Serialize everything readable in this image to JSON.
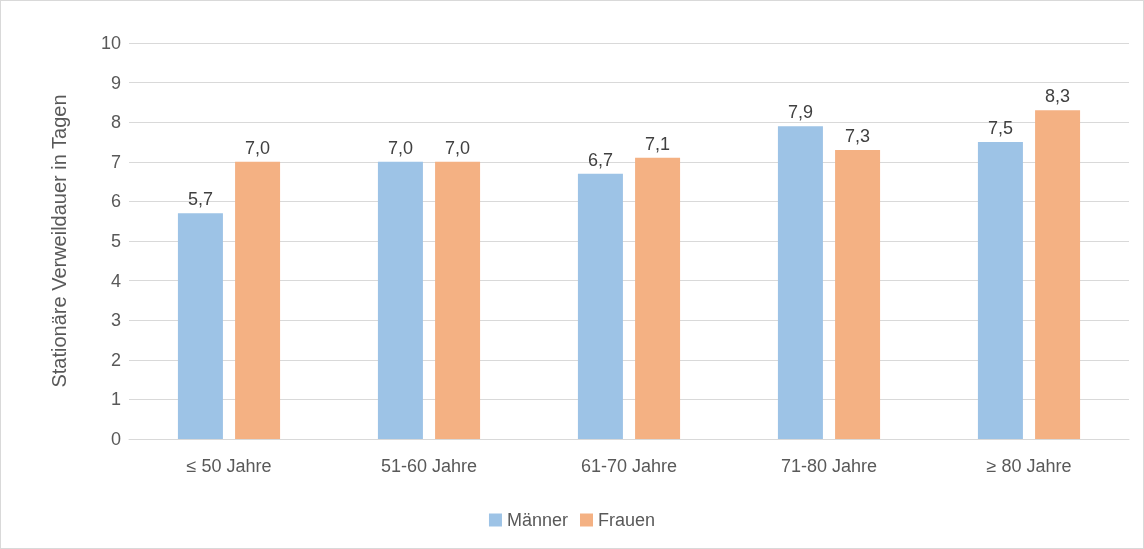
{
  "chart_data": {
    "type": "bar",
    "ylabel": "Stationäre Verweildauer in Tagen",
    "categories": [
      "≤ 50 Jahre",
      "51-60 Jahre",
      "61-70 Jahre",
      "71-80 Jahre",
      "≥ 80 Jahre"
    ],
    "series": [
      {
        "name": "Männer",
        "color": "#9dc3e6",
        "values": [
          5.7,
          7.0,
          6.7,
          7.9,
          7.5
        ],
        "value_labels": [
          "5,7",
          "7,0",
          "6,7",
          "7,9",
          "7,5"
        ]
      },
      {
        "name": "Frauen",
        "color": "#f4b183",
        "values": [
          7.0,
          7.0,
          7.1,
          7.3,
          8.3
        ],
        "value_labels": [
          "7,0",
          "7,0",
          "7,1",
          "7,3",
          "8,3"
        ]
      }
    ],
    "ylim": [
      0,
      10
    ],
    "yticks": [
      0,
      1,
      2,
      3,
      4,
      5,
      6,
      7,
      8,
      9,
      10
    ],
    "grid": "y",
    "legend": "bottom"
  }
}
